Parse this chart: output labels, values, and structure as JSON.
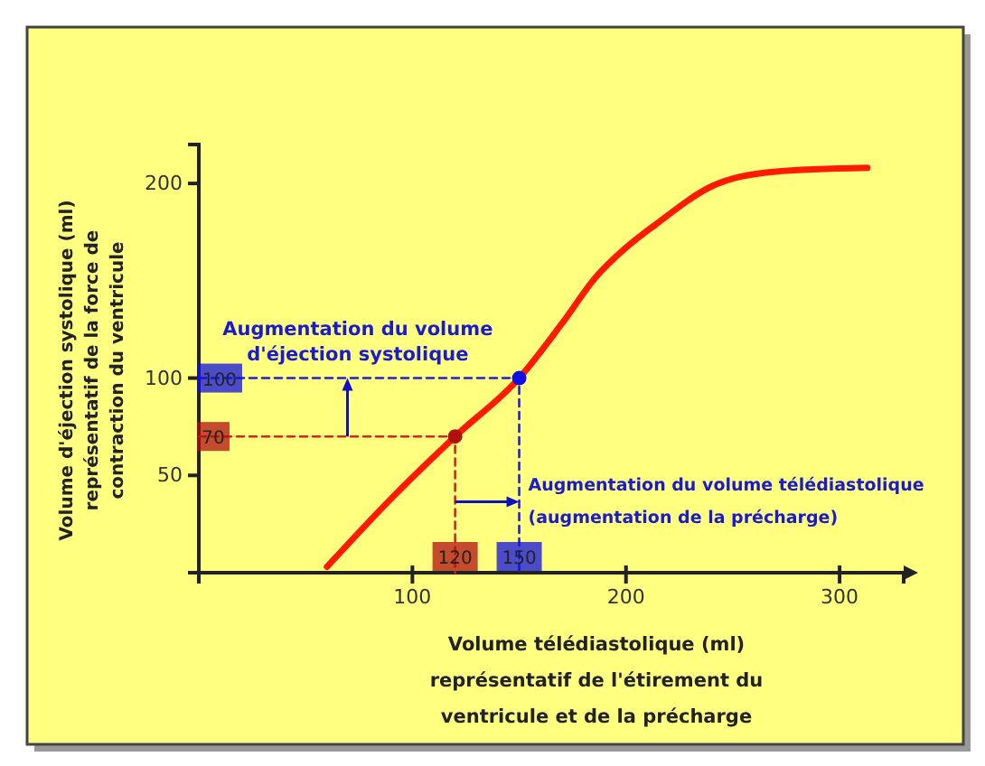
{
  "chart_data": {
    "type": "line",
    "xlabel": "Volume télédiastolique (ml)\nreprésentatif de l'étirement du\nventricule et de la précharge",
    "ylabel": "Volume d'éjection systolique (ml)\nreprésentatif de la force de\ncontraction du ventricule",
    "xlim": [
      0,
      330
    ],
    "ylim": [
      0,
      220
    ],
    "xticks": [
      100,
      200,
      300
    ],
    "yticks": [
      50,
      100,
      200
    ],
    "series": [
      {
        "color": "#ff1a00",
        "line_style": "solid",
        "x": [
          60,
          90,
          120,
          150,
          170,
          186,
          200,
          214,
          241,
          269,
          313
        ],
        "values": [
          3,
          38,
          70,
          100,
          128,
          152,
          167,
          179,
          199,
          206,
          208
        ]
      },
      {
        "type": "line",
        "color": "#cc2a1a",
        "line_style": "dashed",
        "x": [
          0,
          120,
          120
        ],
        "values": [
          70,
          70,
          0
        ]
      },
      {
        "type": "line",
        "color": "#2020d0",
        "line_style": "dashed",
        "x": [
          0,
          150,
          150
        ],
        "values": [
          100,
          100,
          0
        ]
      },
      {
        "type": "scatter",
        "color": "#b01010",
        "marker": "circle",
        "x": [
          120
        ],
        "values": [
          70
        ]
      },
      {
        "type": "scatter",
        "color": "#1010e0",
        "marker": "circle",
        "x": [
          150
        ],
        "values": [
          100
        ]
      }
    ],
    "annotations": [
      "Augmentation du volume\nd'éjection systolique",
      "Augmentation du volume télédiastolique\n(augmentation de la précharge)",
      {
        "text": "70",
        "x": 0,
        "y": 70
      },
      {
        "text": "100",
        "x": 0,
        "y": 100
      },
      {
        "text": "120",
        "x": 120,
        "y": 0
      },
      {
        "text": "150",
        "x": 150,
        "y": 0
      }
    ]
  }
}
